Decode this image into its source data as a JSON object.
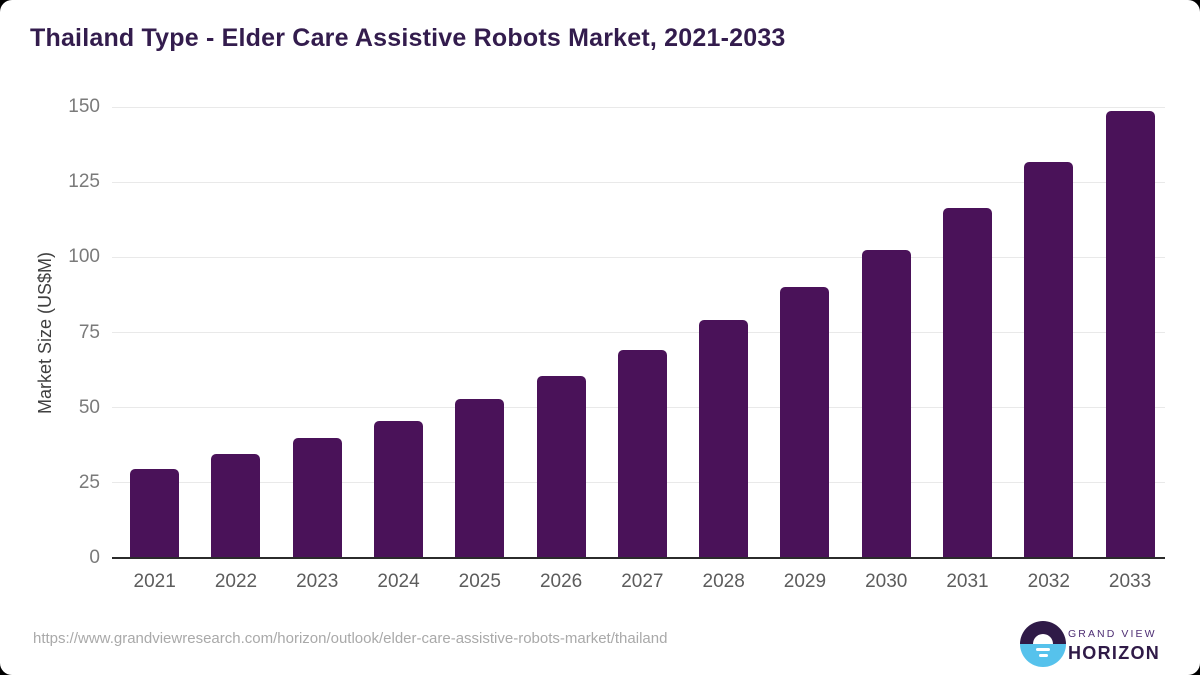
{
  "header": {
    "title": "Thailand Type - Elder Care Assistive Robots Market, 2021-2033"
  },
  "chart_data": {
    "type": "bar",
    "title": "Thailand Type - Elder Care Assistive Robots Market, 2021-2033",
    "xlabel": "",
    "ylabel": "Market Size (US$M)",
    "categories": [
      "2021",
      "2022",
      "2023",
      "2024",
      "2025",
      "2026",
      "2027",
      "2028",
      "2029",
      "2030",
      "2031",
      "2032",
      "2033"
    ],
    "values": [
      29.7,
      34.5,
      39.9,
      45.7,
      52.9,
      60.4,
      69.3,
      79.2,
      90.2,
      102.4,
      116.3,
      131.7,
      148.7
    ],
    "ylim": [
      0,
      150
    ],
    "yticks": [
      0,
      25,
      50,
      75,
      100,
      125,
      150
    ],
    "grid": true,
    "legend": false,
    "bar_color": "#4a1259",
    "gridline_color": "#e9e9e9",
    "axis_line_color": "#2b2b2b"
  },
  "footer": {
    "source_url": "https://www.grandviewresearch.com/horizon/outlook/elder-care-assistive-robots-market/thailand",
    "logo": {
      "brand_line": "GRAND VIEW",
      "product_line": "HORIZON",
      "icon": "sunrise-horizon-icon",
      "colors": {
        "dark_purple": "#2f1a47",
        "medium_purple": "#4d2d73",
        "sky_blue": "#56c2ec"
      }
    }
  },
  "theme": {
    "card_background": "#ffffff",
    "outer_background": "#000000",
    "title_color": "#331c4d"
  }
}
